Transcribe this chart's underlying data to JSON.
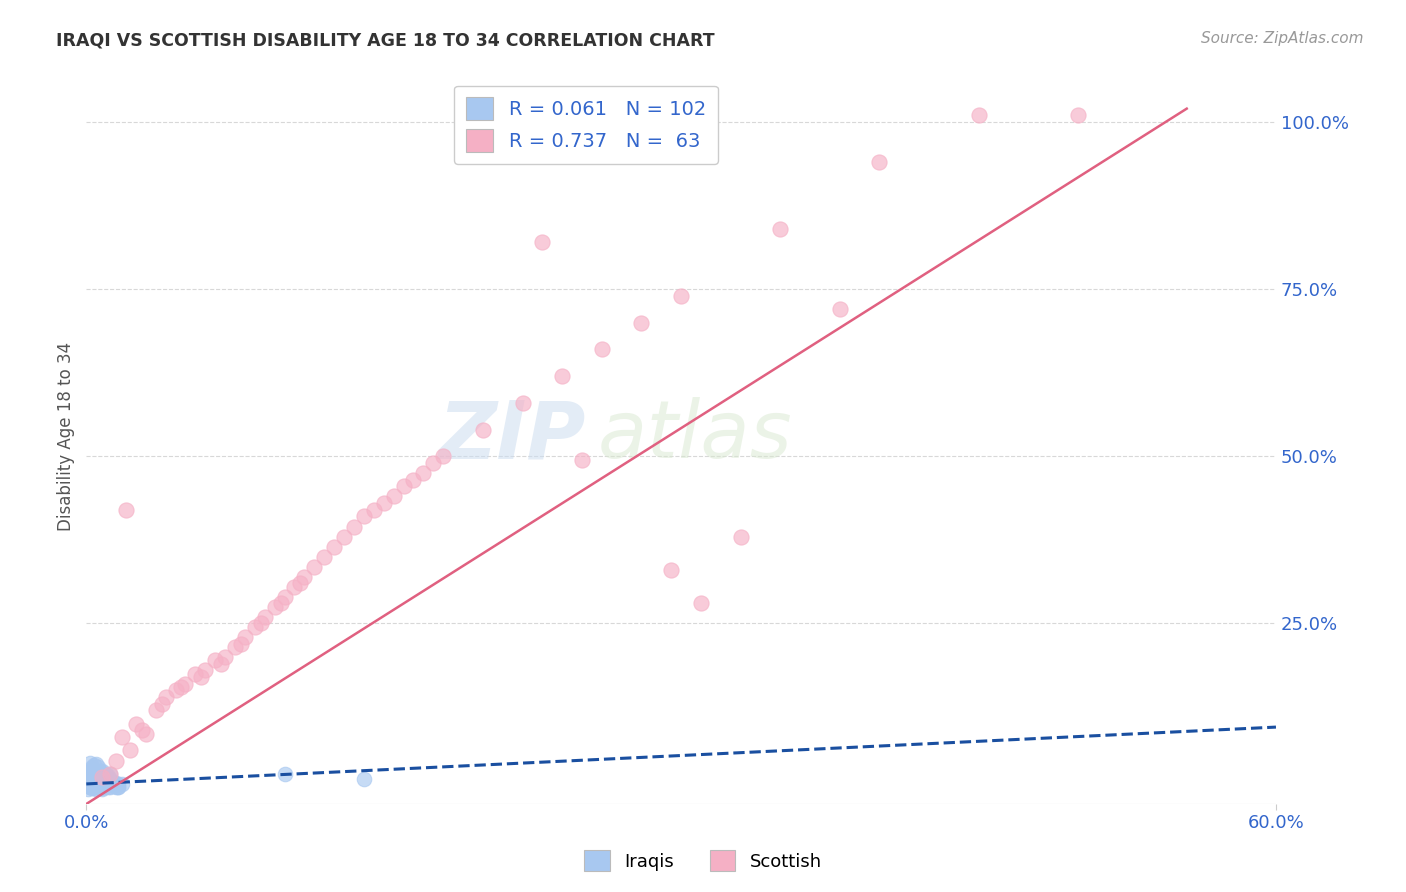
{
  "title": "IRAQI VS SCOTTISH DISABILITY AGE 18 TO 34 CORRELATION CHART",
  "source": "Source: ZipAtlas.com",
  "ylabel": "Disability Age 18 to 34",
  "xlim": [
    0.0,
    0.6
  ],
  "ylim": [
    -0.02,
    1.08
  ],
  "ytick_labels": [
    "100.0%",
    "75.0%",
    "50.0%",
    "25.0%"
  ],
  "ytick_values": [
    1.0,
    0.75,
    0.5,
    0.25
  ],
  "iraqi_color": "#a8c8f0",
  "scottish_color": "#f5b0c5",
  "iraqi_line_color": "#1a4fa0",
  "scottish_line_color": "#e06080",
  "legend_R_iraqi": "0.061",
  "legend_N_iraqi": "102",
  "legend_R_scottish": "0.737",
  "legend_N_scottish": "63",
  "watermark_zip": "ZIP",
  "watermark_atlas": "atlas",
  "background_color": "#ffffff",
  "grid_color": "#d8d8d8",
  "text_color": "#3366cc",
  "title_color": "#333333",
  "source_color": "#999999",
  "seed": 7,
  "iraqi_points": [
    [
      0.002,
      0.005
    ],
    [
      0.003,
      0.008
    ],
    [
      0.001,
      0.003
    ],
    [
      0.005,
      0.012
    ],
    [
      0.008,
      0.015
    ],
    [
      0.004,
      0.006
    ],
    [
      0.006,
      0.01
    ],
    [
      0.002,
      0.02
    ],
    [
      0.01,
      0.008
    ],
    [
      0.007,
      0.018
    ],
    [
      0.003,
      0.004
    ],
    [
      0.012,
      0.005
    ],
    [
      0.001,
      0.015
    ],
    [
      0.005,
      0.025
    ],
    [
      0.008,
      0.003
    ],
    [
      0.015,
      0.012
    ],
    [
      0.006,
      0.022
    ],
    [
      0.003,
      0.01
    ],
    [
      0.009,
      0.006
    ],
    [
      0.002,
      0.018
    ],
    [
      0.004,
      0.008
    ],
    [
      0.011,
      0.015
    ],
    [
      0.007,
      0.004
    ],
    [
      0.014,
      0.01
    ],
    [
      0.002,
      0.03
    ],
    [
      0.016,
      0.005
    ],
    [
      0.003,
      0.012
    ],
    [
      0.008,
      0.025
    ],
    [
      0.005,
      0.003
    ],
    [
      0.01,
      0.02
    ],
    [
      0.001,
      0.008
    ],
    [
      0.018,
      0.01
    ],
    [
      0.004,
      0.028
    ],
    [
      0.007,
      0.006
    ],
    [
      0.012,
      0.018
    ],
    [
      0.003,
      0.022
    ],
    [
      0.009,
      0.012
    ],
    [
      0.006,
      0.035
    ],
    [
      0.002,
      0.01
    ],
    [
      0.015,
      0.008
    ],
    [
      0.005,
      0.04
    ],
    [
      0.008,
      0.005
    ],
    [
      0.011,
      0.022
    ],
    [
      0.004,
      0.015
    ],
    [
      0.007,
      0.018
    ],
    [
      0.013,
      0.008
    ],
    [
      0.003,
      0.032
    ],
    [
      0.009,
      0.01
    ],
    [
      0.006,
      0.005
    ],
    [
      0.002,
      0.025
    ],
    [
      0.01,
      0.015
    ],
    [
      0.005,
      0.008
    ],
    [
      0.014,
      0.012
    ],
    [
      0.001,
      0.02
    ],
    [
      0.008,
      0.03
    ],
    [
      0.004,
      0.006
    ],
    [
      0.011,
      0.008
    ],
    [
      0.007,
      0.018
    ],
    [
      0.003,
      0.035
    ],
    [
      0.016,
      0.01
    ],
    [
      0.005,
      0.012
    ],
    [
      0.009,
      0.005
    ],
    [
      0.002,
      0.042
    ],
    [
      0.012,
      0.015
    ],
    [
      0.006,
      0.02
    ],
    [
      0.004,
      0.008
    ],
    [
      0.01,
      0.025
    ],
    [
      0.001,
      0.01
    ],
    [
      0.015,
      0.006
    ],
    [
      0.007,
      0.03
    ],
    [
      0.003,
      0.012
    ],
    [
      0.008,
      0.018
    ],
    [
      0.005,
      0.005
    ],
    [
      0.013,
      0.01
    ],
    [
      0.002,
      0.022
    ],
    [
      0.009,
      0.008
    ],
    [
      0.006,
      0.015
    ],
    [
      0.004,
      0.038
    ],
    [
      0.011,
      0.005
    ],
    [
      0.007,
      0.012
    ],
    [
      0.003,
      0.028
    ],
    [
      0.01,
      0.01
    ],
    [
      0.001,
      0.018
    ],
    [
      0.014,
      0.008
    ],
    [
      0.005,
      0.02
    ],
    [
      0.008,
      0.015
    ],
    [
      0.002,
      0.005
    ],
    [
      0.012,
      0.025
    ],
    [
      0.006,
      0.01
    ],
    [
      0.004,
      0.03
    ],
    [
      0.009,
      0.006
    ],
    [
      0.003,
      0.012
    ],
    [
      0.007,
      0.022
    ],
    [
      0.005,
      0.008
    ],
    [
      0.011,
      0.015
    ],
    [
      0.002,
      0.018
    ],
    [
      0.016,
      0.005
    ],
    [
      0.008,
      0.01
    ],
    [
      0.1,
      0.025
    ],
    [
      0.14,
      0.018
    ]
  ],
  "scottish_points": [
    [
      0.008,
      0.02
    ],
    [
      0.012,
      0.025
    ],
    [
      0.018,
      0.08
    ],
    [
      0.025,
      0.1
    ],
    [
      0.03,
      0.085
    ],
    [
      0.035,
      0.12
    ],
    [
      0.04,
      0.14
    ],
    [
      0.022,
      0.06
    ],
    [
      0.015,
      0.045
    ],
    [
      0.05,
      0.16
    ],
    [
      0.045,
      0.15
    ],
    [
      0.028,
      0.09
    ],
    [
      0.06,
      0.18
    ],
    [
      0.055,
      0.175
    ],
    [
      0.038,
      0.13
    ],
    [
      0.07,
      0.2
    ],
    [
      0.065,
      0.195
    ],
    [
      0.048,
      0.155
    ],
    [
      0.08,
      0.23
    ],
    [
      0.075,
      0.215
    ],
    [
      0.058,
      0.17
    ],
    [
      0.09,
      0.26
    ],
    [
      0.085,
      0.245
    ],
    [
      0.068,
      0.19
    ],
    [
      0.1,
      0.29
    ],
    [
      0.095,
      0.275
    ],
    [
      0.078,
      0.22
    ],
    [
      0.11,
      0.32
    ],
    [
      0.105,
      0.305
    ],
    [
      0.088,
      0.25
    ],
    [
      0.12,
      0.35
    ],
    [
      0.115,
      0.335
    ],
    [
      0.098,
      0.28
    ],
    [
      0.13,
      0.38
    ],
    [
      0.125,
      0.365
    ],
    [
      0.108,
      0.31
    ],
    [
      0.14,
      0.41
    ],
    [
      0.135,
      0.395
    ],
    [
      0.145,
      0.42
    ],
    [
      0.155,
      0.44
    ],
    [
      0.15,
      0.43
    ],
    [
      0.16,
      0.455
    ],
    [
      0.165,
      0.465
    ],
    [
      0.17,
      0.475
    ],
    [
      0.175,
      0.49
    ],
    [
      0.18,
      0.5
    ],
    [
      0.2,
      0.54
    ],
    [
      0.22,
      0.58
    ],
    [
      0.24,
      0.62
    ],
    [
      0.26,
      0.66
    ],
    [
      0.28,
      0.7
    ],
    [
      0.3,
      0.74
    ],
    [
      0.35,
      0.84
    ],
    [
      0.4,
      0.94
    ],
    [
      0.45,
      1.01
    ],
    [
      0.5,
      1.01
    ],
    [
      0.23,
      0.82
    ],
    [
      0.38,
      0.72
    ],
    [
      0.02,
      0.42
    ],
    [
      0.33,
      0.38
    ],
    [
      0.31,
      0.28
    ],
    [
      0.295,
      0.33
    ],
    [
      0.25,
      0.495
    ]
  ]
}
